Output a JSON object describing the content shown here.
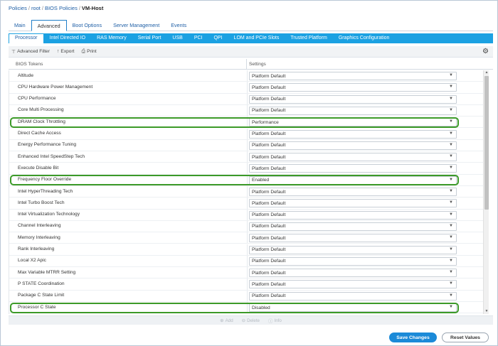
{
  "breadcrumb": {
    "items": [
      "Policies",
      "root",
      "BIOS Policies"
    ],
    "current": "VM-Host",
    "separator": "/"
  },
  "main_tabs": [
    "Main",
    "Advanced",
    "Boot Options",
    "Server Management",
    "Events"
  ],
  "main_tabs_active": "Advanced",
  "sub_tabs": [
    "Processor",
    "Intel Directed IO",
    "RAS Memory",
    "Serial Port",
    "USB",
    "PCI",
    "QPI",
    "LOM and PCIe Slots",
    "Trusted Platform",
    "Graphics Configuration"
  ],
  "sub_tabs_active": "Processor",
  "toolbar": {
    "filter_label": "Advanced Filter",
    "export_label": "Export",
    "print_label": "Print",
    "filter_icon": "filter-icon",
    "export_icon": "export-icon",
    "print_icon": "print-icon",
    "settings_icon": "gear-icon"
  },
  "table": {
    "headers": [
      "BIOS Tokens",
      "Settings"
    ],
    "rows": [
      {
        "token": "Altitude",
        "setting": "Platform Default",
        "highlighted": false
      },
      {
        "token": "CPU Hardware Power Management",
        "setting": "Platform Default",
        "highlighted": false
      },
      {
        "token": "CPU Performance",
        "setting": "Platform Default",
        "highlighted": false
      },
      {
        "token": "Core Multi Processing",
        "setting": "Platform Default",
        "highlighted": false
      },
      {
        "token": "DRAM Clock Throttling",
        "setting": "Performance",
        "highlighted": true
      },
      {
        "token": "Direct Cache Access",
        "setting": "Platform Default",
        "highlighted": false
      },
      {
        "token": "Energy Performance Tuning",
        "setting": "Platform Default",
        "highlighted": false
      },
      {
        "token": "Enhanced Intel SpeedStep Tech",
        "setting": "Platform Default",
        "highlighted": false
      },
      {
        "token": "Execute Disable Bit",
        "setting": "Platform Default",
        "highlighted": false
      },
      {
        "token": "Frequency Floor Override",
        "setting": "Enabled",
        "highlighted": true
      },
      {
        "token": "Intel HyperThreading Tech",
        "setting": "Platform Default",
        "highlighted": false
      },
      {
        "token": "Intel Turbo Boost Tech",
        "setting": "Platform Default",
        "highlighted": false
      },
      {
        "token": "Intel Virtualization Technology",
        "setting": "Platform Default",
        "highlighted": false
      },
      {
        "token": "Channel Interleaving",
        "setting": "Platform Default",
        "highlighted": false
      },
      {
        "token": "Memory Interleaving",
        "setting": "Platform Default",
        "highlighted": false
      },
      {
        "token": "Rank Interleaving",
        "setting": "Platform Default",
        "highlighted": false
      },
      {
        "token": "Local X2 Apic",
        "setting": "Platform Default",
        "highlighted": false
      },
      {
        "token": "Max Variable MTRR Setting",
        "setting": "Platform Default",
        "highlighted": false
      },
      {
        "token": "P STATE Coordination",
        "setting": "Platform Default",
        "highlighted": false
      },
      {
        "token": "Package C State Limit",
        "setting": "Platform Default",
        "highlighted": false
      },
      {
        "token": "Processor C State",
        "setting": "Disabled",
        "highlighted": true
      }
    ]
  },
  "footer_actions": [
    {
      "label": "Add",
      "icon": "add-icon"
    },
    {
      "label": "Delete",
      "icon": "delete-icon"
    },
    {
      "label": "Info",
      "icon": "info-icon"
    }
  ],
  "buttons": {
    "save": "Save Changes",
    "reset": "Reset Values"
  },
  "colors": {
    "accent": "#1ba1e2",
    "primary_button": "#1b8ad8",
    "highlight_border": "#3c9a28",
    "link": "#1f5fa6"
  }
}
